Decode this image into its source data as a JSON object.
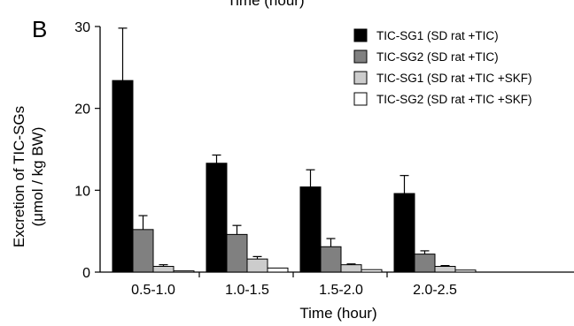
{
  "top_cut_label": "Time (hour)",
  "panel_label": "B",
  "chart_data": {
    "type": "bar",
    "xlabel": "Time (hour)",
    "ylabel_line1": "Excretion of TIC-SGs",
    "ylabel_line2": "(μmol / kg BW)",
    "ylim": [
      0,
      30
    ],
    "yticks": [
      0,
      10,
      20,
      30
    ],
    "categories": [
      "0.5-1.0",
      "1.0-1.5",
      "1.5-2.0",
      "2.0-2.5"
    ],
    "legend_position": "top-right",
    "series": [
      {
        "name": "TIC-SG1 (SD rat +TIC)",
        "color": "#000000",
        "values": [
          23.4,
          13.3,
          10.4,
          9.6
        ],
        "errors": [
          6.4,
          1.0,
          2.1,
          2.2
        ]
      },
      {
        "name": "TIC-SG2 (SD rat +TIC)",
        "color": "#808080",
        "values": [
          5.2,
          4.6,
          3.1,
          2.2
        ],
        "errors": [
          1.7,
          1.1,
          1.0,
          0.4
        ]
      },
      {
        "name": "TIC-SG1 (SD rat +TIC +SKF)",
        "color": "#cccccc",
        "values": [
          0.7,
          1.6,
          0.9,
          0.7
        ],
        "errors": [
          0.2,
          0.3,
          0.1,
          0.1
        ]
      },
      {
        "name": "TIC-SG2 (SD rat +TIC +SKF)",
        "color": "#ffffff",
        "values": [
          0.15,
          0.5,
          0.3,
          0.25
        ],
        "errors": [
          0.0,
          0.0,
          0.0,
          0.0
        ]
      }
    ]
  }
}
